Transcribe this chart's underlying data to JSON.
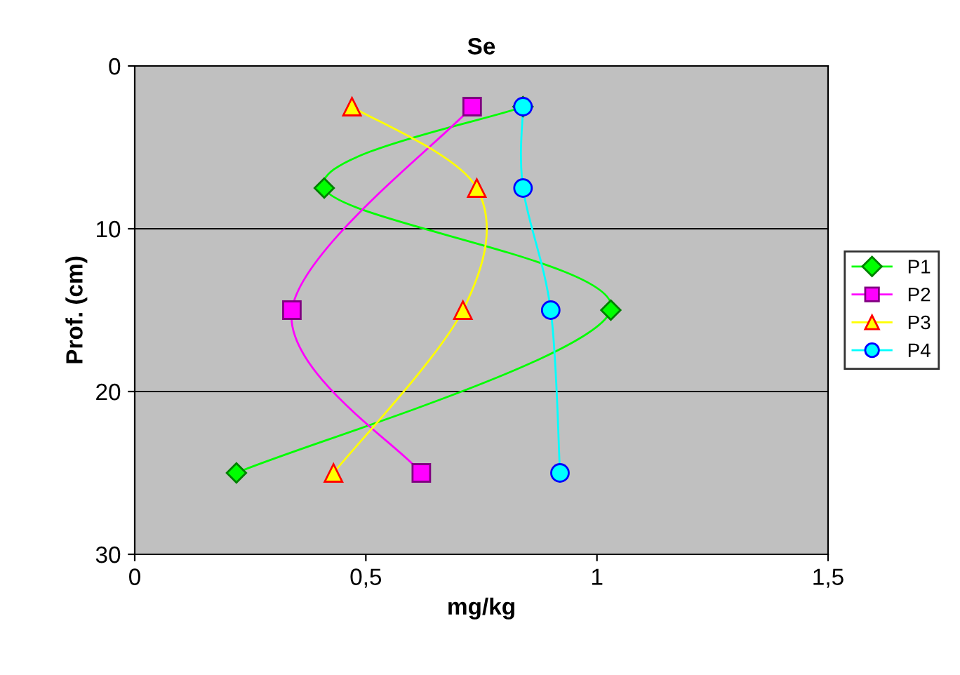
{
  "chart_data": {
    "type": "line",
    "title": "Se",
    "xlabel": "mg/kg",
    "ylabel": "Prof. (cm)",
    "xlim": [
      0,
      1.5
    ],
    "xticks": [
      0,
      {
        "value": 0.5,
        "label": "0,5"
      },
      1,
      {
        "value": 1.5,
        "label": "1,5"
      }
    ],
    "ylim": [
      30,
      0
    ],
    "yticks": [
      0,
      10,
      20,
      30
    ],
    "grid": "y",
    "legend": "right",
    "series": [
      {
        "name": "P1",
        "color": "#00ff00",
        "marker": "diamond",
        "x": [
          0.84,
          0.41,
          1.03,
          0.22
        ],
        "values": [
          2.5,
          7.5,
          15,
          25
        ]
      },
      {
        "name": "P2",
        "color": "#ff00ff",
        "marker": "square",
        "x": [
          0.73,
          0.34,
          0.62
        ],
        "values": [
          2.5,
          15,
          25
        ]
      },
      {
        "name": "P3",
        "color": "#ffff00",
        "marker": "triangle",
        "x": [
          0.47,
          0.74,
          0.71,
          0.43
        ],
        "values": [
          2.5,
          7.5,
          15,
          25
        ]
      },
      {
        "name": "P4",
        "color": "#00ffff",
        "marker": "circle",
        "x": [
          0.84,
          0.84,
          0.9,
          0.92
        ],
        "values": [
          2.5,
          7.5,
          15,
          25
        ]
      }
    ]
  }
}
